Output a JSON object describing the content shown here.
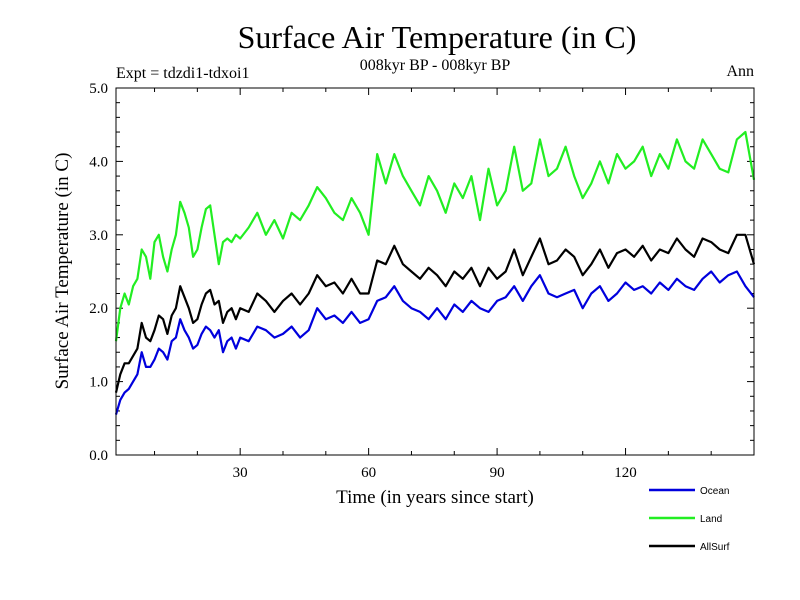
{
  "chart_data": {
    "type": "line",
    "title": "Surface Air Temperature (in C)",
    "subtitle_left": "Expt = tdzdi1-tdxoi1",
    "subtitle_center": "008kyr BP - 008kyr BP",
    "subtitle_right": "Ann",
    "xlabel": "Time (in years since start)",
    "ylabel": "Surface Air Temperature (in C)",
    "xlim": [
      1,
      150
    ],
    "ylim": [
      0,
      5
    ],
    "xticks": [
      30,
      60,
      90,
      120
    ],
    "xtick_labels": [
      "30",
      "60",
      "90",
      "120"
    ],
    "yticks": [
      0,
      1,
      2,
      3,
      4,
      5
    ],
    "ytick_labels": [
      "0.0",
      "1.0",
      "2.0",
      "3.0",
      "4.0",
      "5.0"
    ],
    "legend_position": "bottom-right",
    "series": [
      {
        "name": "Ocean",
        "color": "#0000dd",
        "x": [
          1,
          2,
          3,
          4,
          5,
          6,
          7,
          8,
          9,
          10,
          11,
          12,
          13,
          14,
          15,
          16,
          17,
          18,
          19,
          20,
          21,
          22,
          23,
          24,
          25,
          26,
          27,
          28,
          29,
          30,
          32,
          34,
          36,
          38,
          40,
          42,
          44,
          46,
          48,
          50,
          52,
          54,
          56,
          58,
          60,
          62,
          64,
          66,
          68,
          70,
          72,
          74,
          76,
          78,
          80,
          82,
          84,
          86,
          88,
          90,
          92,
          94,
          96,
          98,
          100,
          102,
          104,
          106,
          108,
          110,
          112,
          114,
          116,
          118,
          120,
          122,
          124,
          126,
          128,
          130,
          132,
          134,
          136,
          138,
          140,
          142,
          144,
          146,
          148,
          150
        ],
        "values": [
          0.55,
          0.75,
          0.85,
          0.9,
          1.0,
          1.1,
          1.4,
          1.2,
          1.2,
          1.3,
          1.45,
          1.4,
          1.3,
          1.55,
          1.6,
          1.85,
          1.7,
          1.6,
          1.45,
          1.5,
          1.65,
          1.75,
          1.7,
          1.6,
          1.7,
          1.4,
          1.55,
          1.6,
          1.45,
          1.6,
          1.55,
          1.75,
          1.7,
          1.6,
          1.65,
          1.75,
          1.6,
          1.7,
          2.0,
          1.85,
          1.9,
          1.8,
          1.95,
          1.8,
          1.85,
          2.1,
          2.15,
          2.3,
          2.1,
          2.0,
          1.95,
          1.85,
          2.0,
          1.85,
          2.05,
          1.95,
          2.1,
          2.0,
          1.95,
          2.1,
          2.15,
          2.3,
          2.1,
          2.3,
          2.45,
          2.2,
          2.15,
          2.2,
          2.25,
          2.0,
          2.2,
          2.3,
          2.1,
          2.2,
          2.35,
          2.25,
          2.3,
          2.2,
          2.35,
          2.25,
          2.4,
          2.3,
          2.25,
          2.4,
          2.5,
          2.35,
          2.45,
          2.5,
          2.3,
          2.15
        ]
      },
      {
        "name": "Land",
        "color": "#22ee22",
        "x": [
          1,
          2,
          3,
          4,
          5,
          6,
          7,
          8,
          9,
          10,
          11,
          12,
          13,
          14,
          15,
          16,
          17,
          18,
          19,
          20,
          21,
          22,
          23,
          24,
          25,
          26,
          27,
          28,
          29,
          30,
          32,
          34,
          36,
          38,
          40,
          42,
          44,
          46,
          48,
          50,
          52,
          54,
          56,
          58,
          60,
          62,
          64,
          66,
          68,
          70,
          72,
          74,
          76,
          78,
          80,
          82,
          84,
          86,
          88,
          90,
          92,
          94,
          96,
          98,
          100,
          102,
          104,
          106,
          108,
          110,
          112,
          114,
          116,
          118,
          120,
          122,
          124,
          126,
          128,
          130,
          132,
          134,
          136,
          138,
          140,
          142,
          144,
          146,
          148,
          150
        ],
        "values": [
          1.55,
          2.0,
          2.2,
          2.05,
          2.3,
          2.4,
          2.8,
          2.7,
          2.4,
          2.9,
          3.0,
          2.7,
          2.5,
          2.8,
          3.0,
          3.45,
          3.3,
          3.1,
          2.7,
          2.8,
          3.1,
          3.35,
          3.4,
          3.0,
          2.6,
          2.9,
          2.95,
          2.9,
          3.0,
          2.95,
          3.1,
          3.3,
          3.0,
          3.2,
          2.95,
          3.3,
          3.2,
          3.4,
          3.65,
          3.5,
          3.3,
          3.2,
          3.5,
          3.3,
          3.0,
          4.1,
          3.7,
          4.1,
          3.8,
          3.6,
          3.4,
          3.8,
          3.6,
          3.3,
          3.7,
          3.5,
          3.8,
          3.2,
          3.9,
          3.4,
          3.6,
          4.2,
          3.6,
          3.7,
          4.3,
          3.8,
          3.9,
          4.2,
          3.8,
          3.5,
          3.7,
          4.0,
          3.7,
          4.1,
          3.9,
          4.0,
          4.2,
          3.8,
          4.1,
          3.9,
          4.3,
          4.0,
          3.9,
          4.3,
          4.1,
          3.9,
          3.85,
          4.3,
          4.4,
          3.75
        ]
      },
      {
        "name": "AllSurf",
        "color": "#000000",
        "x": [
          1,
          2,
          3,
          4,
          5,
          6,
          7,
          8,
          9,
          10,
          11,
          12,
          13,
          14,
          15,
          16,
          17,
          18,
          19,
          20,
          21,
          22,
          23,
          24,
          25,
          26,
          27,
          28,
          29,
          30,
          32,
          34,
          36,
          38,
          40,
          42,
          44,
          46,
          48,
          50,
          52,
          54,
          56,
          58,
          60,
          62,
          64,
          66,
          68,
          70,
          72,
          74,
          76,
          78,
          80,
          82,
          84,
          86,
          88,
          90,
          92,
          94,
          96,
          98,
          100,
          102,
          104,
          106,
          108,
          110,
          112,
          114,
          116,
          118,
          120,
          122,
          124,
          126,
          128,
          130,
          132,
          134,
          136,
          138,
          140,
          142,
          144,
          146,
          148,
          150
        ],
        "values": [
          0.85,
          1.1,
          1.25,
          1.25,
          1.35,
          1.45,
          1.8,
          1.6,
          1.55,
          1.7,
          1.9,
          1.85,
          1.65,
          1.9,
          2.0,
          2.3,
          2.15,
          2.0,
          1.8,
          1.85,
          2.05,
          2.2,
          2.25,
          2.05,
          2.1,
          1.8,
          1.95,
          2.0,
          1.85,
          2.0,
          1.95,
          2.2,
          2.1,
          1.95,
          2.1,
          2.2,
          2.05,
          2.2,
          2.45,
          2.3,
          2.35,
          2.2,
          2.4,
          2.2,
          2.2,
          2.65,
          2.6,
          2.85,
          2.6,
          2.5,
          2.4,
          2.55,
          2.45,
          2.3,
          2.5,
          2.4,
          2.55,
          2.3,
          2.55,
          2.4,
          2.5,
          2.8,
          2.45,
          2.7,
          2.95,
          2.6,
          2.65,
          2.8,
          2.7,
          2.45,
          2.6,
          2.8,
          2.55,
          2.75,
          2.8,
          2.7,
          2.85,
          2.65,
          2.8,
          2.75,
          2.95,
          2.8,
          2.7,
          2.95,
          2.9,
          2.8,
          2.75,
          3.0,
          3.0,
          2.6
        ]
      }
    ]
  }
}
